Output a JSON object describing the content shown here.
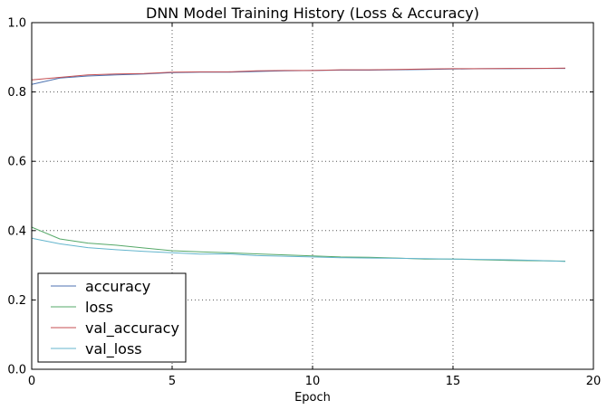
{
  "chart_data": {
    "type": "line",
    "title": "DNN Model Training History (Loss & Accuracy)",
    "xlabel": "Epoch",
    "ylabel": "",
    "xlim": [
      0,
      20
    ],
    "ylim": [
      0,
      1
    ],
    "xticks": [
      "0",
      "5",
      "10",
      "15",
      "20"
    ],
    "yticks": [
      "0.0",
      "0.2",
      "0.4",
      "0.6",
      "0.8",
      "1.0"
    ],
    "grid": true,
    "legend_position": "lower-left",
    "x": [
      0,
      1,
      2,
      3,
      4,
      5,
      6,
      7,
      8,
      9,
      10,
      11,
      12,
      13,
      14,
      15,
      16,
      17,
      18,
      19
    ],
    "series": [
      {
        "name": "accuracy",
        "color": "#4c72b0",
        "values": [
          0.822,
          0.84,
          0.846,
          0.849,
          0.852,
          0.856,
          0.857,
          0.857,
          0.859,
          0.861,
          0.862,
          0.863,
          0.863,
          0.864,
          0.865,
          0.866,
          0.867,
          0.867,
          0.868,
          0.868
        ]
      },
      {
        "name": "loss",
        "color": "#55a868",
        "values": [
          0.41,
          0.376,
          0.364,
          0.358,
          0.35,
          0.342,
          0.339,
          0.336,
          0.333,
          0.33,
          0.327,
          0.324,
          0.323,
          0.321,
          0.318,
          0.318,
          0.316,
          0.314,
          0.313,
          0.312
        ]
      },
      {
        "name": "val_accuracy",
        "color": "#c44e52",
        "values": [
          0.835,
          0.842,
          0.849,
          0.852,
          0.853,
          0.857,
          0.858,
          0.858,
          0.861,
          0.862,
          0.862,
          0.864,
          0.864,
          0.865,
          0.866,
          0.867,
          0.867,
          0.868,
          0.868,
          0.869
        ]
      },
      {
        "name": "val_loss",
        "color": "#64b5cd",
        "values": [
          0.378,
          0.362,
          0.351,
          0.345,
          0.34,
          0.336,
          0.332,
          0.333,
          0.328,
          0.326,
          0.324,
          0.322,
          0.321,
          0.32,
          0.319,
          0.318,
          0.317,
          0.316,
          0.314,
          0.311
        ]
      }
    ]
  }
}
